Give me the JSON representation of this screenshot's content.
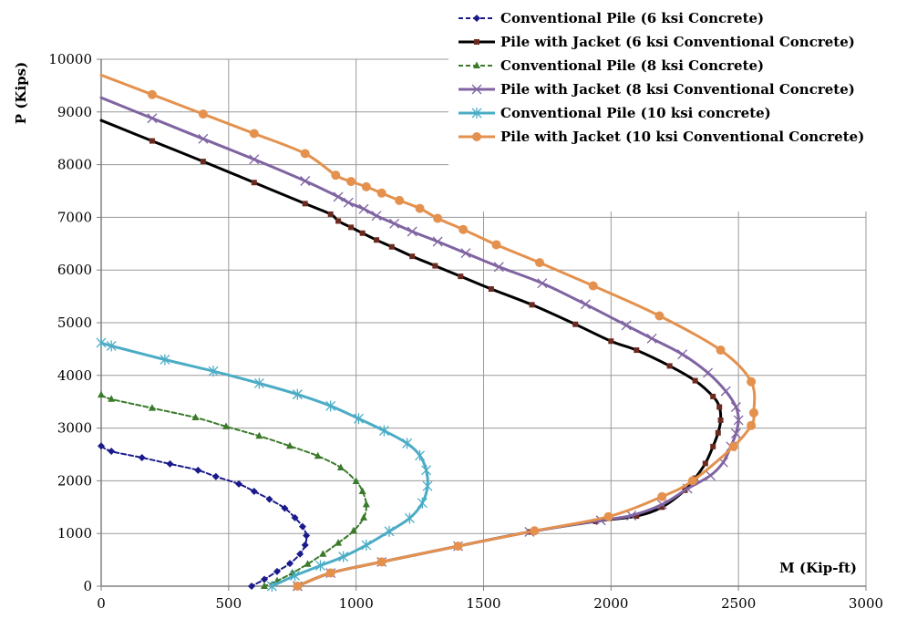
{
  "chart_data": {
    "type": "line",
    "title": "",
    "xlabel": "M (Kip-ft)",
    "ylabel": "P (Kips)",
    "xlim": [
      0,
      3000
    ],
    "ylim": [
      0,
      10000
    ],
    "xticks": [
      0,
      500,
      1000,
      1500,
      2000,
      2500,
      3000
    ],
    "yticks": [
      0,
      1000,
      2000,
      3000,
      4000,
      5000,
      6000,
      7000,
      8000,
      9000,
      10000
    ],
    "grid": true,
    "legend": "top-right",
    "series": [
      {
        "name": "Conventional Pile (6 ksi Concrete)",
        "color": "#1a1a8c",
        "dash": "dashed",
        "width": 2,
        "marker": "diamond",
        "points": [
          [
            0,
            2660
          ],
          [
            40,
            2560
          ],
          [
            160,
            2440
          ],
          [
            270,
            2320
          ],
          [
            380,
            2200
          ],
          [
            450,
            2080
          ],
          [
            540,
            1940
          ],
          [
            600,
            1800
          ],
          [
            660,
            1650
          ],
          [
            720,
            1480
          ],
          [
            760,
            1300
          ],
          [
            790,
            1130
          ],
          [
            805,
            960
          ],
          [
            800,
            780
          ],
          [
            780,
            610
          ],
          [
            740,
            430
          ],
          [
            690,
            280
          ],
          [
            640,
            130
          ],
          [
            590,
            0
          ]
        ]
      },
      {
        "name": "Pile with Jacket (6 ksi Conventional Concrete)",
        "color": "#000000",
        "dash": "solid",
        "width": 3,
        "marker": "square",
        "points": [
          [
            0,
            8840
          ],
          [
            200,
            8450
          ],
          [
            400,
            8060
          ],
          [
            600,
            7660
          ],
          [
            800,
            7260
          ],
          [
            900,
            7060
          ],
          [
            930,
            6930
          ],
          [
            980,
            6810
          ],
          [
            1025,
            6700
          ],
          [
            1080,
            6570
          ],
          [
            1140,
            6440
          ],
          [
            1220,
            6260
          ],
          [
            1310,
            6080
          ],
          [
            1410,
            5880
          ],
          [
            1530,
            5640
          ],
          [
            1690,
            5340
          ],
          [
            1860,
            4970
          ],
          [
            2000,
            4650
          ],
          [
            2100,
            4480
          ],
          [
            2230,
            4180
          ],
          [
            2330,
            3900
          ],
          [
            2400,
            3600
          ],
          [
            2425,
            3400
          ],
          [
            2430,
            3150
          ],
          [
            2420,
            2910
          ],
          [
            2400,
            2650
          ],
          [
            2370,
            2330
          ],
          [
            2330,
            2050
          ],
          [
            2290,
            1820
          ],
          [
            2200,
            1500
          ],
          [
            2100,
            1330
          ],
          [
            1940,
            1230
          ],
          [
            1680,
            1030
          ],
          [
            1400,
            760
          ],
          [
            1100,
            460
          ],
          [
            900,
            250
          ],
          [
            770,
            0
          ]
        ]
      },
      {
        "name": "Conventional Pile (8 ksi Concrete)",
        "color": "#3a7a2a",
        "dash": "dashed",
        "width": 2,
        "marker": "triangle",
        "points": [
          [
            0,
            3630
          ],
          [
            40,
            3550
          ],
          [
            200,
            3380
          ],
          [
            370,
            3200
          ],
          [
            490,
            3030
          ],
          [
            620,
            2850
          ],
          [
            740,
            2660
          ],
          [
            850,
            2470
          ],
          [
            940,
            2250
          ],
          [
            1000,
            1990
          ],
          [
            1025,
            1800
          ],
          [
            1040,
            1550
          ],
          [
            1030,
            1300
          ],
          [
            990,
            1050
          ],
          [
            930,
            820
          ],
          [
            870,
            610
          ],
          [
            810,
            420
          ],
          [
            750,
            250
          ],
          [
            690,
            100
          ],
          [
            640,
            0
          ]
        ]
      },
      {
        "name": "Pile with Jacket (8 ksi Conventional Concrete)",
        "color": "#8064a2",
        "dash": "solid",
        "width": 3,
        "marker": "x",
        "points": [
          [
            0,
            9270
          ],
          [
            200,
            8880
          ],
          [
            400,
            8490
          ],
          [
            600,
            8100
          ],
          [
            800,
            7690
          ],
          [
            930,
            7390
          ],
          [
            970,
            7280
          ],
          [
            1030,
            7160
          ],
          [
            1080,
            7030
          ],
          [
            1150,
            6880
          ],
          [
            1220,
            6730
          ],
          [
            1320,
            6540
          ],
          [
            1430,
            6320
          ],
          [
            1560,
            6060
          ],
          [
            1730,
            5750
          ],
          [
            1900,
            5350
          ],
          [
            2060,
            4950
          ],
          [
            2160,
            4700
          ],
          [
            2280,
            4400
          ],
          [
            2380,
            4050
          ],
          [
            2450,
            3700
          ],
          [
            2490,
            3400
          ],
          [
            2500,
            3150
          ],
          [
            2490,
            2900
          ],
          [
            2470,
            2650
          ],
          [
            2440,
            2350
          ],
          [
            2390,
            2100
          ],
          [
            2300,
            1850
          ],
          [
            2200,
            1550
          ],
          [
            2080,
            1340
          ],
          [
            1960,
            1250
          ],
          [
            1680,
            1030
          ],
          [
            1400,
            760
          ],
          [
            1100,
            460
          ],
          [
            900,
            250
          ],
          [
            770,
            0
          ]
        ]
      },
      {
        "name": "Conventional Pile (10 ksi concrete)",
        "color": "#4bacc6",
        "dash": "solid",
        "width": 3,
        "marker": "star",
        "points": [
          [
            0,
            4620
          ],
          [
            40,
            4560
          ],
          [
            250,
            4300
          ],
          [
            440,
            4080
          ],
          [
            620,
            3850
          ],
          [
            770,
            3640
          ],
          [
            900,
            3420
          ],
          [
            1010,
            3180
          ],
          [
            1110,
            2950
          ],
          [
            1200,
            2710
          ],
          [
            1250,
            2480
          ],
          [
            1275,
            2200
          ],
          [
            1280,
            1900
          ],
          [
            1260,
            1580
          ],
          [
            1210,
            1290
          ],
          [
            1130,
            1040
          ],
          [
            1040,
            780
          ],
          [
            950,
            560
          ],
          [
            860,
            390
          ],
          [
            760,
            200
          ],
          [
            670,
            0
          ]
        ]
      },
      {
        "name": "Pile with Jacket (10 ksi Conventional Concrete)",
        "color": "#e4914e",
        "dash": "solid",
        "width": 3,
        "marker": "circle",
        "points": [
          [
            0,
            9700
          ],
          [
            200,
            9330
          ],
          [
            400,
            8960
          ],
          [
            600,
            8590
          ],
          [
            800,
            8210
          ],
          [
            920,
            7800
          ],
          [
            980,
            7680
          ],
          [
            1040,
            7580
          ],
          [
            1100,
            7460
          ],
          [
            1170,
            7320
          ],
          [
            1250,
            7170
          ],
          [
            1320,
            6980
          ],
          [
            1420,
            6770
          ],
          [
            1550,
            6480
          ],
          [
            1720,
            6140
          ],
          [
            1930,
            5700
          ],
          [
            2190,
            5130
          ],
          [
            2430,
            4480
          ],
          [
            2550,
            3880
          ],
          [
            2560,
            3290
          ],
          [
            2550,
            3050
          ],
          [
            2480,
            2650
          ],
          [
            2320,
            2000
          ],
          [
            2200,
            1700
          ],
          [
            1990,
            1320
          ],
          [
            1700,
            1050
          ],
          [
            1400,
            760
          ],
          [
            1100,
            460
          ],
          [
            900,
            250
          ],
          [
            770,
            0
          ]
        ]
      }
    ]
  }
}
